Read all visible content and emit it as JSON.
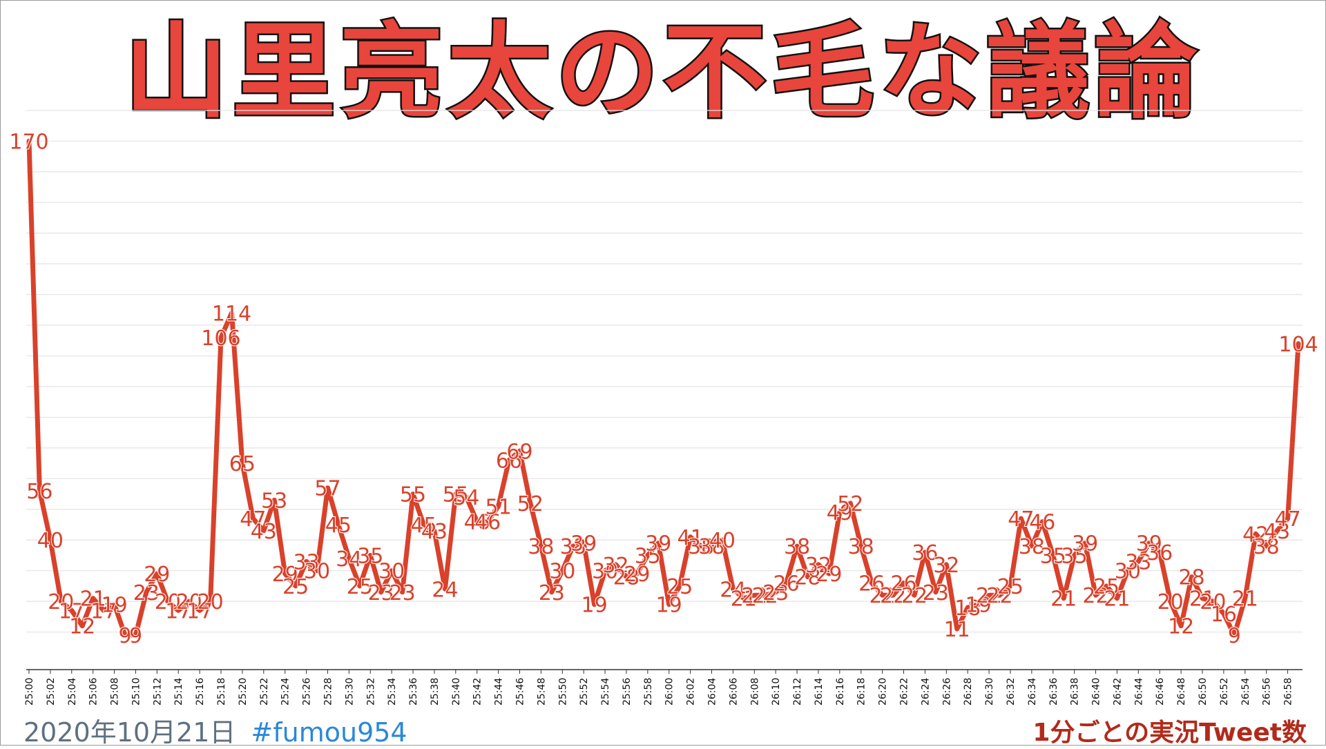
{
  "title": "山里亮太の不毛な議論",
  "footer": {
    "date": "2020年10月21日",
    "hashtag": "#fumou954",
    "caption": "1分ごとの実況Tweet数"
  },
  "colors": {
    "line": "#d9412b",
    "title_fill": "#e8453c",
    "title_stroke": "#111111",
    "grid": "#e3e3e3"
  },
  "chart_data": {
    "type": "line",
    "x": [
      "25:00",
      "25:01",
      "25:02",
      "25:03",
      "25:04",
      "25:05",
      "25:06",
      "25:07",
      "25:08",
      "25:09",
      "25:10",
      "25:11",
      "25:12",
      "25:13",
      "25:14",
      "25:15",
      "25:16",
      "25:17",
      "25:18",
      "25:19",
      "25:20",
      "25:21",
      "25:22",
      "25:23",
      "25:24",
      "25:25",
      "25:26",
      "25:27",
      "25:28",
      "25:29",
      "25:30",
      "25:31",
      "25:32",
      "25:33",
      "25:34",
      "25:35",
      "25:36",
      "25:37",
      "25:38",
      "25:39",
      "25:40",
      "25:41",
      "25:42",
      "25:43",
      "25:44",
      "25:45",
      "25:46",
      "25:47",
      "25:48",
      "25:49",
      "25:50",
      "25:51",
      "25:52",
      "25:53",
      "25:54",
      "25:55",
      "25:56",
      "25:57",
      "25:58",
      "25:59",
      "26:00",
      "26:01",
      "26:02",
      "26:03",
      "26:04",
      "26:05",
      "26:06",
      "26:07",
      "26:08",
      "26:09",
      "26:10",
      "26:11",
      "26:12",
      "26:13",
      "26:14",
      "26:15",
      "26:16",
      "26:17",
      "26:18",
      "26:19",
      "26:20",
      "26:21",
      "26:22",
      "26:23",
      "26:24",
      "26:25",
      "26:26",
      "26:27",
      "26:28",
      "26:29",
      "26:30",
      "26:31",
      "26:32",
      "26:33",
      "26:34",
      "26:35",
      "26:36",
      "26:37",
      "26:38",
      "26:39",
      "26:40",
      "26:41",
      "26:42",
      "26:43",
      "26:44",
      "26:45",
      "26:46",
      "26:47",
      "26:48",
      "26:49",
      "26:50",
      "26:51",
      "26:52",
      "26:53",
      "26:54",
      "26:55",
      "26:56",
      "26:57",
      "26:58",
      "26:59"
    ],
    "values": [
      170,
      56,
      40,
      20,
      17,
      12,
      21,
      17,
      19,
      9,
      9,
      23,
      29,
      20,
      17,
      20,
      17,
      20,
      106,
      114,
      65,
      47,
      43,
      53,
      29,
      25,
      33,
      30,
      57,
      45,
      34,
      25,
      35,
      23,
      30,
      23,
      55,
      45,
      43,
      24,
      55,
      54,
      46,
      46,
      51,
      66,
      69,
      52,
      38,
      23,
      30,
      38,
      39,
      19,
      30,
      32,
      28,
      29,
      35,
      39,
      19,
      25,
      41,
      38,
      38,
      40,
      24,
      21,
      22,
      22,
      23,
      26,
      38,
      28,
      32,
      29,
      49,
      52,
      38,
      26,
      22,
      22,
      26,
      22,
      36,
      23,
      32,
      11,
      18,
      19,
      22,
      22,
      25,
      47,
      38,
      46,
      35,
      21,
      35,
      39,
      22,
      25,
      21,
      30,
      33,
      39,
      36,
      20,
      12,
      28,
      21,
      20,
      16,
      9,
      21,
      42,
      38,
      43,
      47,
      104
    ],
    "tick_labels": [
      "25:00",
      "25:02",
      "25:04",
      "25:06",
      "25:08",
      "25:10",
      "25:12",
      "25:14",
      "25:16",
      "25:18",
      "25:20",
      "25:22",
      "25:24",
      "25:26",
      "25:28",
      "25:30",
      "25:32",
      "25:34",
      "25:36",
      "25:38",
      "25:40",
      "25:42",
      "25:44",
      "25:46",
      "25:48",
      "25:50",
      "25:52",
      "25:54",
      "25:56",
      "25:58",
      "26:00",
      "26:02",
      "26:04",
      "26:06",
      "26:08",
      "26:10",
      "26:12",
      "26:14",
      "26:16",
      "26:18",
      "26:20",
      "26:22",
      "26:24",
      "26:26",
      "26:28",
      "26:30",
      "26:32",
      "26:34",
      "26:36",
      "26:38",
      "26:40",
      "26:42",
      "26:44",
      "26:46",
      "26:48",
      "26:50",
      "26:52",
      "26:54",
      "26:56",
      "26:58"
    ],
    "ylim": [
      0,
      180
    ],
    "grid": true,
    "data_labels": true
  }
}
